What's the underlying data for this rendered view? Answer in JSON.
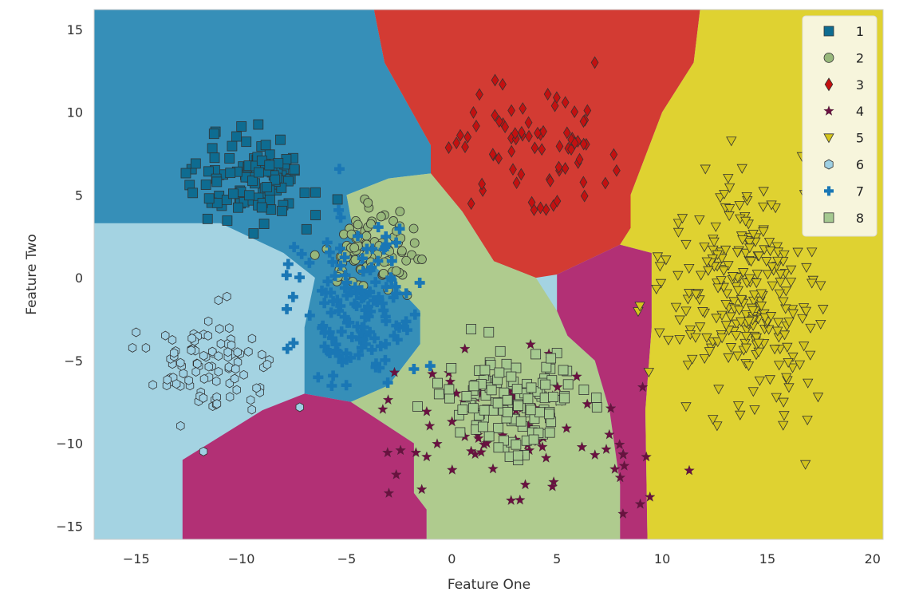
{
  "chart_data": {
    "type": "scatter",
    "subtype": "classification decision boundary",
    "xlabel": "Feature One",
    "ylabel": "Feature Two",
    "xlim": [
      -17,
      20.5
    ],
    "ylim": [
      -15.8,
      16.2
    ],
    "x_ticks": [
      -15,
      -10,
      -5,
      0,
      5,
      10,
      15,
      20
    ],
    "x_tick_labels": [
      "−15",
      "−10",
      "−5",
      "0",
      "5",
      "10",
      "15",
      "20"
    ],
    "y_ticks": [
      -15,
      -10,
      -5,
      0,
      5,
      10,
      15
    ],
    "y_tick_labels": [
      "−15",
      "−10",
      "−5",
      "0",
      "5",
      "10",
      "15"
    ],
    "grid": false,
    "legend_position": "top-right",
    "series": [
      {
        "name": "1",
        "marker": "square",
        "color": "#0e6c91",
        "region_color": "#368fb8",
        "centroid": [
          -9.5,
          6.0
        ],
        "spread": [
          2.5,
          2.2
        ],
        "count": 110
      },
      {
        "name": "2",
        "marker": "circle",
        "color": "#98b87b",
        "region_color": "#afcb8e",
        "centroid": [
          -3.8,
          1.5
        ],
        "spread": [
          2.2,
          2.0
        ],
        "count": 90
      },
      {
        "name": "3",
        "marker": "diamond",
        "color": "#c41010",
        "region_color": "#d33b33",
        "centroid": [
          3.5,
          8.0
        ],
        "spread": [
          3.5,
          3.5
        ],
        "count": 75
      },
      {
        "name": "4",
        "marker": "star",
        "color": "#6b1040",
        "region_color": "#b23075",
        "centroid": [
          3.0,
          -9.0
        ],
        "spread": [
          5.5,
          3.5
        ],
        "count": 85
      },
      {
        "name": "5",
        "marker": "triangle-down",
        "color": "#d4c51d",
        "region_color": "#dfd231",
        "centroid": [
          14.0,
          -1.0
        ],
        "spread": [
          3.2,
          5.5
        ],
        "count": 260
      },
      {
        "name": "6",
        "marker": "hexagon",
        "color": "#9fd0e3",
        "region_color": "#a4d3e2",
        "centroid": [
          -11.5,
          -5.5
        ],
        "spread": [
          2.3,
          2.8
        ],
        "count": 95
      },
      {
        "name": "7",
        "marker": "plus",
        "color": "#1a77b5",
        "region_color": "#368fb8",
        "centroid": [
          -4.5,
          -1.5
        ],
        "spread": [
          2.5,
          4.5
        ],
        "count": 140
      },
      {
        "name": "8",
        "marker": "square",
        "color": "#a5c990",
        "region_color": "#afcb8e",
        "centroid": [
          3.0,
          -7.5
        ],
        "spread": [
          3.0,
          2.8
        ],
        "count": 130
      }
    ]
  }
}
